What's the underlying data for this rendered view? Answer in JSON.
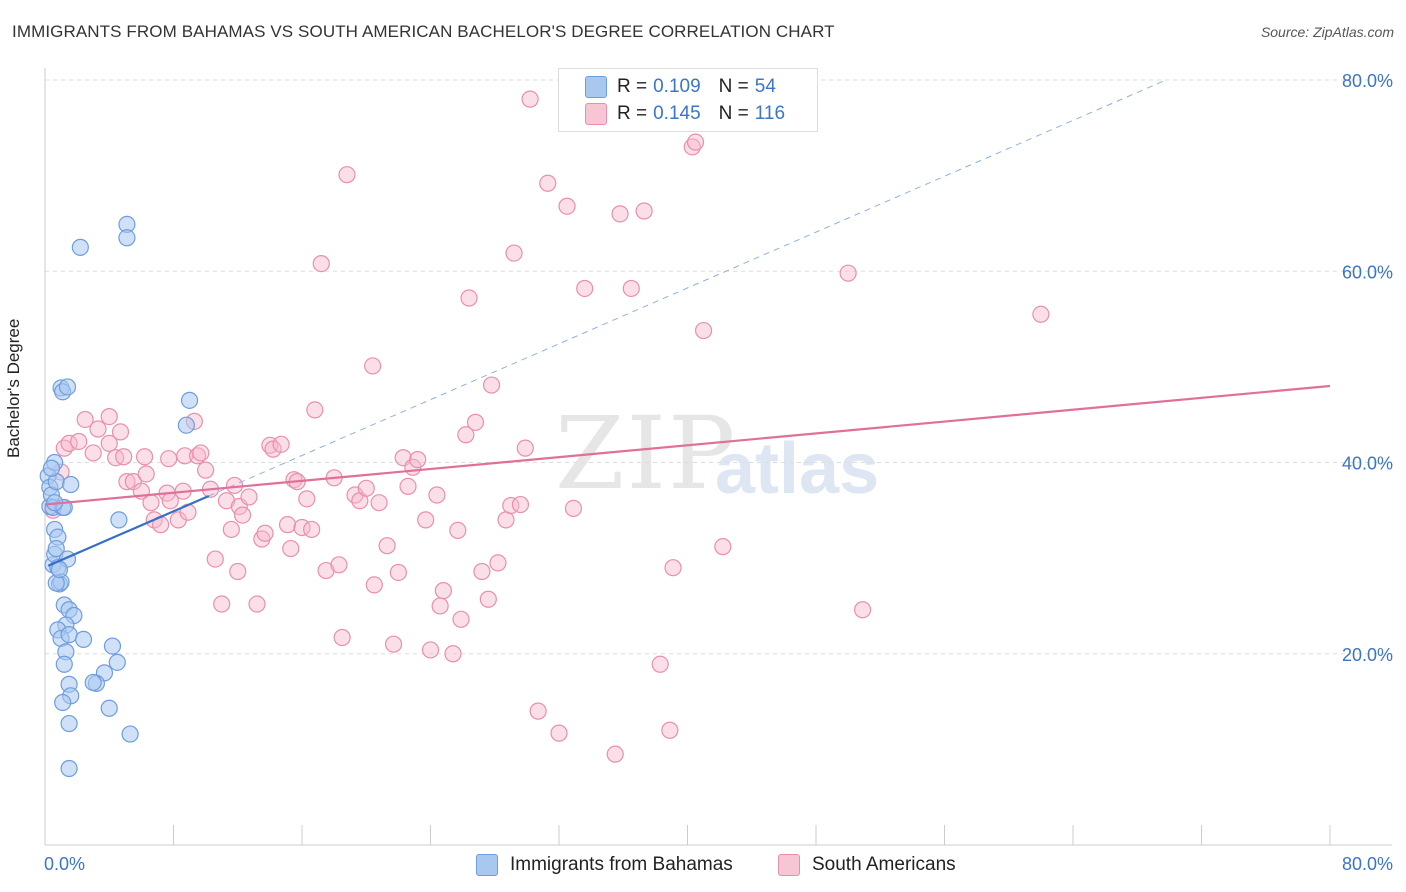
{
  "title": "IMMIGRANTS FROM BAHAMAS VS SOUTH AMERICAN BACHELOR'S DEGREE CORRELATION CHART",
  "source": "Source: ZipAtlas.com",
  "watermark": {
    "part1": "ZIP",
    "part2": "atlas"
  },
  "legend": {
    "rows": [
      {
        "r_label": "R = ",
        "r_value": "0.109",
        "n_label": "N = ",
        "n_value": "54"
      },
      {
        "r_label": "R = ",
        "r_value": "0.145",
        "n_label": "N = ",
        "n_value": "116"
      }
    ]
  },
  "colors": {
    "blue_fill": "#a9c8f0",
    "blue_stroke": "#6d9de0",
    "blue_line": "#3470c9",
    "pink_fill": "#f7b8cb",
    "pink_stroke": "#ea8fab",
    "pink_line": "#e0709a",
    "axis_text": "#3b74c8",
    "grid": "#dddddd"
  },
  "chart_data": {
    "type": "scatter",
    "title": "IMMIGRANTS FROM BAHAMAS VS SOUTH AMERICAN BACHELOR'S DEGREE CORRELATION CHART",
    "xlabel": "",
    "ylabel": "Bachelor's Degree",
    "xlim": [
      0,
      80
    ],
    "ylim": [
      0,
      80
    ],
    "x_tick_labels": [
      "0.0%",
      "80.0%"
    ],
    "y_tick_labels": [
      "20.0%",
      "40.0%",
      "60.0%",
      "80.0%"
    ],
    "y_ticks": [
      20,
      40,
      60,
      80
    ],
    "series": [
      {
        "name": "Immigrants from Bahamas",
        "color": "blue",
        "R": 0.109,
        "N": 54,
        "trend": {
          "x": [
            0.2,
            10.2
          ],
          "y": [
            29.2,
            36.5
          ]
        },
        "points": [
          [
            0.2,
            38.6
          ],
          [
            0.3,
            37.4
          ],
          [
            0.3,
            35.4
          ],
          [
            0.4,
            36.6
          ],
          [
            0.5,
            35.3
          ],
          [
            0.6,
            40.0
          ],
          [
            0.6,
            33.0
          ],
          [
            0.7,
            38.0
          ],
          [
            0.5,
            29.3
          ],
          [
            0.6,
            30.4
          ],
          [
            0.8,
            32.2
          ],
          [
            0.7,
            31.0
          ],
          [
            0.8,
            29.0
          ],
          [
            0.9,
            27.3
          ],
          [
            1.0,
            27.5
          ],
          [
            1.1,
            35.3
          ],
          [
            1.2,
            35.3
          ],
          [
            1.4,
            29.9
          ],
          [
            1.6,
            37.7
          ],
          [
            1.0,
            47.8
          ],
          [
            1.1,
            47.4
          ],
          [
            1.4,
            47.9
          ],
          [
            2.2,
            62.5
          ],
          [
            5.1,
            64.9
          ],
          [
            5.1,
            63.5
          ],
          [
            8.8,
            43.9
          ],
          [
            9.0,
            46.5
          ],
          [
            4.6,
            34.0
          ],
          [
            1.2,
            25.1
          ],
          [
            1.5,
            24.6
          ],
          [
            1.8,
            24.0
          ],
          [
            1.3,
            23.0
          ],
          [
            0.8,
            22.5
          ],
          [
            1.0,
            21.6
          ],
          [
            1.5,
            22.0
          ],
          [
            2.4,
            21.5
          ],
          [
            1.3,
            20.2
          ],
          [
            1.2,
            18.9
          ],
          [
            1.5,
            16.8
          ],
          [
            1.6,
            15.6
          ],
          [
            1.1,
            14.9
          ],
          [
            4.2,
            20.8
          ],
          [
            4.5,
            19.1
          ],
          [
            3.7,
            18.0
          ],
          [
            3.2,
            16.9
          ],
          [
            3.0,
            17.0
          ],
          [
            1.5,
            12.7
          ],
          [
            4.0,
            14.3
          ],
          [
            5.3,
            11.6
          ],
          [
            1.5,
            8.0
          ],
          [
            0.7,
            27.4
          ],
          [
            0.9,
            28.8
          ],
          [
            0.6,
            35.8
          ],
          [
            0.4,
            39.4
          ]
        ]
      },
      {
        "name": "South Americans",
        "color": "pink",
        "R": 0.145,
        "N": 116,
        "trend": {
          "x": [
            0,
            80
          ],
          "y": [
            35.6,
            48.0
          ]
        },
        "points": [
          [
            0.5,
            35.0
          ],
          [
            1.0,
            39.0
          ],
          [
            1.2,
            41.5
          ],
          [
            1.5,
            42.0
          ],
          [
            2.1,
            42.2
          ],
          [
            2.5,
            44.5
          ],
          [
            3.0,
            41.0
          ],
          [
            3.3,
            43.5
          ],
          [
            4.0,
            44.8
          ],
          [
            4.0,
            42.0
          ],
          [
            4.4,
            40.5
          ],
          [
            4.7,
            43.2
          ],
          [
            4.9,
            40.6
          ],
          [
            5.1,
            38.0
          ],
          [
            5.5,
            38.0
          ],
          [
            6.0,
            37.0
          ],
          [
            6.2,
            40.6
          ],
          [
            6.3,
            38.8
          ],
          [
            6.6,
            35.8
          ],
          [
            6.8,
            34.0
          ],
          [
            7.2,
            33.5
          ],
          [
            7.6,
            36.8
          ],
          [
            7.7,
            40.4
          ],
          [
            7.8,
            36.0
          ],
          [
            8.3,
            34.0
          ],
          [
            8.6,
            37.0
          ],
          [
            8.7,
            40.7
          ],
          [
            8.9,
            34.8
          ],
          [
            9.3,
            44.3
          ],
          [
            9.5,
            40.7
          ],
          [
            9.7,
            41.0
          ],
          [
            10.0,
            39.2
          ],
          [
            10.3,
            37.2
          ],
          [
            10.6,
            29.9
          ],
          [
            11.0,
            25.2
          ],
          [
            11.3,
            36.0
          ],
          [
            11.6,
            33.0
          ],
          [
            11.8,
            37.6
          ],
          [
            12.0,
            28.6
          ],
          [
            12.1,
            35.4
          ],
          [
            12.3,
            34.5
          ],
          [
            12.7,
            36.4
          ],
          [
            13.2,
            25.2
          ],
          [
            13.5,
            32.0
          ],
          [
            13.7,
            32.6
          ],
          [
            14.0,
            41.8
          ],
          [
            14.2,
            41.4
          ],
          [
            14.7,
            41.9
          ],
          [
            15.1,
            33.5
          ],
          [
            15.3,
            31.0
          ],
          [
            15.5,
            38.2
          ],
          [
            15.7,
            38.0
          ],
          [
            16.0,
            33.2
          ],
          [
            16.3,
            36.2
          ],
          [
            16.6,
            33.0
          ],
          [
            16.8,
            45.5
          ],
          [
            17.2,
            60.8
          ],
          [
            17.5,
            28.7
          ],
          [
            18.0,
            38.4
          ],
          [
            18.3,
            29.3
          ],
          [
            18.5,
            21.7
          ],
          [
            18.8,
            70.1
          ],
          [
            19.3,
            36.6
          ],
          [
            19.6,
            36.0
          ],
          [
            20.0,
            37.3
          ],
          [
            20.4,
            50.1
          ],
          [
            20.5,
            27.2
          ],
          [
            20.8,
            35.8
          ],
          [
            21.3,
            31.3
          ],
          [
            21.7,
            21.0
          ],
          [
            22.0,
            28.5
          ],
          [
            22.3,
            40.5
          ],
          [
            22.6,
            37.5
          ],
          [
            22.9,
            39.5
          ],
          [
            23.2,
            40.3
          ],
          [
            23.7,
            34.0
          ],
          [
            24.0,
            20.4
          ],
          [
            24.4,
            36.6
          ],
          [
            24.6,
            25.0
          ],
          [
            24.8,
            26.6
          ],
          [
            25.4,
            20.0
          ],
          [
            25.7,
            32.9
          ],
          [
            25.9,
            23.6
          ],
          [
            26.2,
            42.9
          ],
          [
            26.4,
            57.2
          ],
          [
            26.8,
            44.2
          ],
          [
            27.2,
            28.6
          ],
          [
            27.6,
            25.7
          ],
          [
            27.8,
            48.1
          ],
          [
            28.2,
            29.5
          ],
          [
            28.7,
            34.0
          ],
          [
            29.0,
            35.5
          ],
          [
            29.2,
            61.9
          ],
          [
            29.6,
            35.6
          ],
          [
            29.9,
            41.5
          ],
          [
            30.2,
            78.0
          ],
          [
            30.7,
            14.0
          ],
          [
            31.3,
            69.2
          ],
          [
            32.0,
            11.7
          ],
          [
            32.5,
            66.8
          ],
          [
            32.9,
            35.2
          ],
          [
            33.6,
            58.2
          ],
          [
            35.5,
            9.5
          ],
          [
            35.8,
            66.0
          ],
          [
            36.5,
            58.2
          ],
          [
            37.3,
            66.3
          ],
          [
            38.3,
            18.9
          ],
          [
            38.9,
            12.0
          ],
          [
            39.1,
            29.0
          ],
          [
            40.3,
            73.0
          ],
          [
            40.5,
            73.5
          ],
          [
            41.0,
            53.8
          ],
          [
            42.2,
            31.2
          ],
          [
            50.0,
            59.8
          ],
          [
            50.9,
            24.6
          ],
          [
            62.0,
            55.5
          ]
        ]
      }
    ]
  },
  "bottom_legend": [
    "Immigrants from Bahamas",
    "South Americans"
  ]
}
